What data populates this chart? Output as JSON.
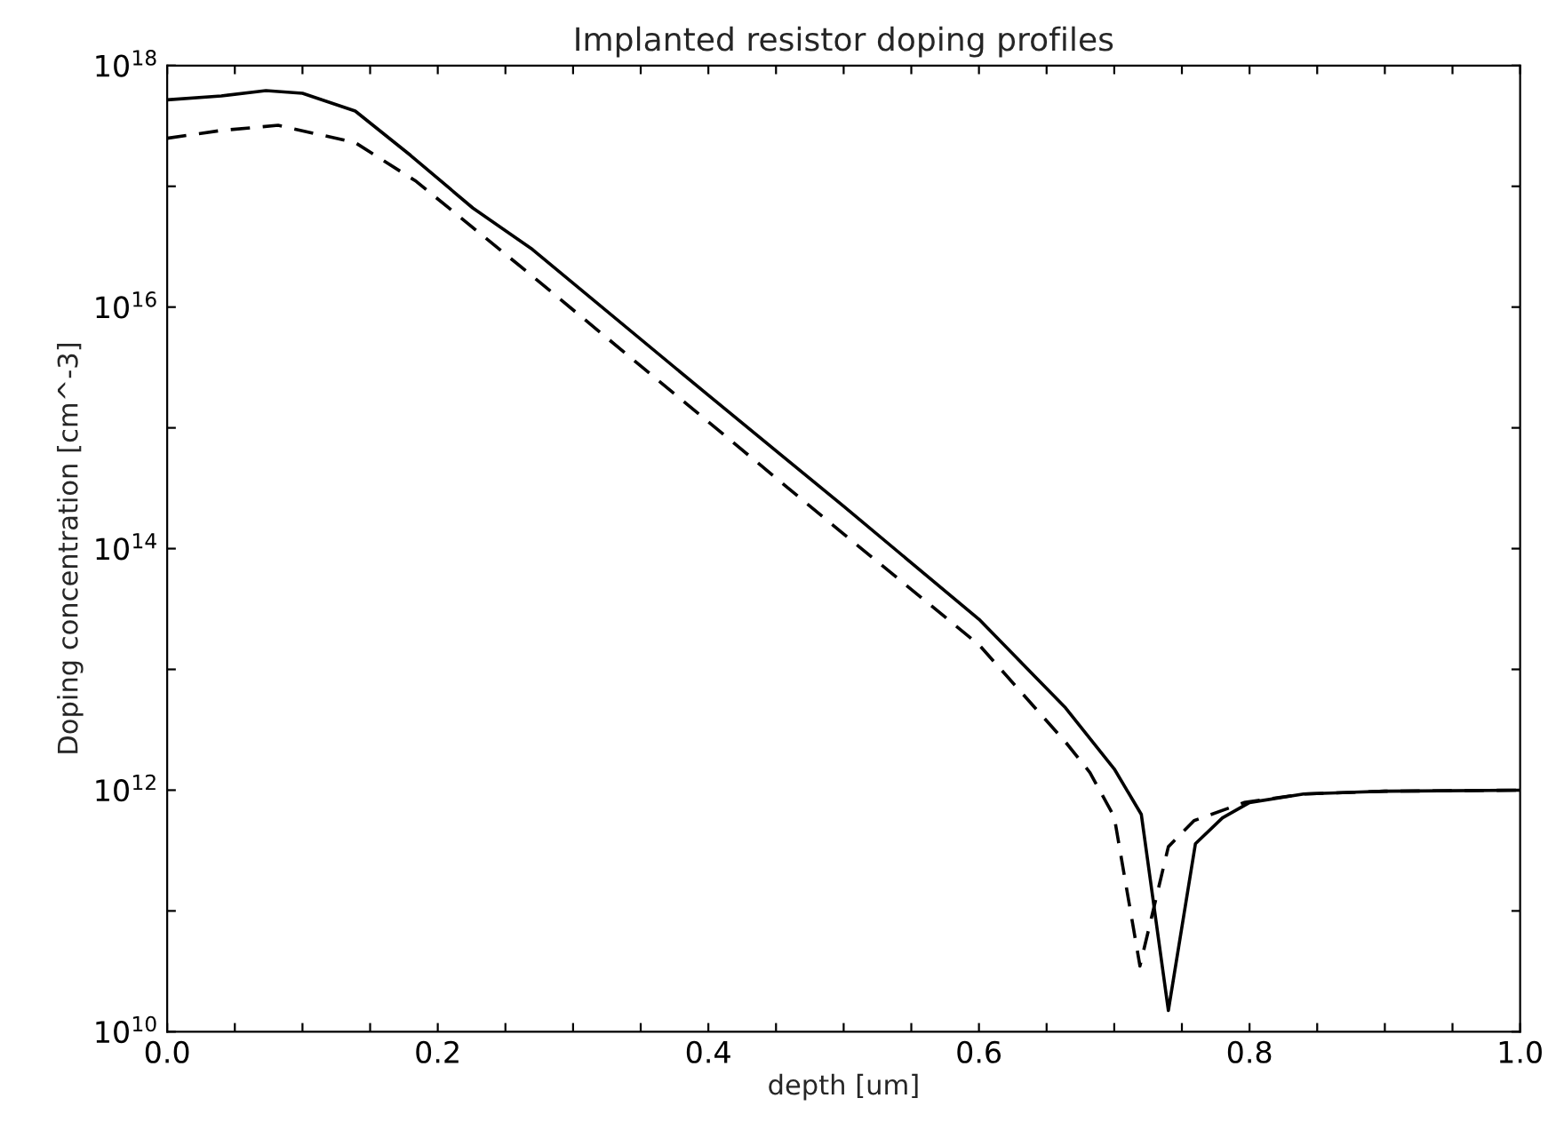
{
  "chart_data": {
    "type": "line",
    "title": "Implanted resistor doping profiles",
    "xlabel": "depth [um]",
    "ylabel": "Doping concentration [cm^-3]",
    "log": "y",
    "grid": false,
    "legend": false,
    "marker": "none",
    "xlim": [
      0,
      1.0
    ],
    "ylim": [
      10000000000.0,
      1e+18
    ],
    "xticks": [
      {
        "value": 0,
        "label": "0.0"
      },
      {
        "value": 0.05,
        "label": null
      },
      {
        "value": 0.1,
        "label": null
      },
      {
        "value": 0.15,
        "label": null
      },
      {
        "value": 0.2,
        "label": "0.2"
      },
      {
        "value": 0.25,
        "label": null
      },
      {
        "value": 0.3,
        "label": null
      },
      {
        "value": 0.35,
        "label": null
      },
      {
        "value": 0.4,
        "label": "0.4"
      },
      {
        "value": 0.45,
        "label": null
      },
      {
        "value": 0.5,
        "label": null
      },
      {
        "value": 0.55,
        "label": null
      },
      {
        "value": 0.6,
        "label": "0.6"
      },
      {
        "value": 0.65,
        "label": null
      },
      {
        "value": 0.7,
        "label": null
      },
      {
        "value": 0.75,
        "label": null
      },
      {
        "value": 0.8,
        "label": "0.8"
      },
      {
        "value": 0.85,
        "label": null
      },
      {
        "value": 0.9,
        "label": null
      },
      {
        "value": 0.95,
        "label": null
      },
      {
        "value": 1.0,
        "label": "1.0"
      }
    ],
    "yticks": [
      {
        "value": 10000000000.0,
        "label": "10$^{10}$"
      },
      {
        "value": 100000000000.0,
        "label": null
      },
      {
        "value": 1000000000000.0,
        "label": "10$^{12}$"
      },
      {
        "value": 10000000000000.0,
        "label": null
      },
      {
        "value": 100000000000000.0,
        "label": "10$^{14}$"
      },
      {
        "value": 1000000000000000.0,
        "label": null
      },
      {
        "value": 1e+16,
        "label": "10$^{16}$"
      },
      {
        "value": 1e+17,
        "label": null
      },
      {
        "value": 1e+18,
        "label": "10$^{18}$"
      }
    ],
    "series": [
      {
        "color": "#000000",
        "line_style": "solid",
        "x": [
          0,
          0.04,
          0.073,
          0.1,
          0.139,
          0.18,
          0.226,
          0.27,
          0.4,
          0.5,
          0.6,
          0.664,
          0.7,
          0.72,
          0.74,
          0.76,
          0.78,
          0.8,
          0.84,
          0.9,
          1.0
        ],
        "values": [
          5.2e+17,
          5.6e+17,
          6.2e+17,
          5.9e+17,
          4.2e+17,
          1.8e+17,
          6.6e+16,
          3e+16,
          1860000000000000.0,
          224000000000000.0,
          26000000000000.0,
          4800000000000.0,
          1500000000000.0,
          630000000000.0,
          15000000000.0,
          360000000000.0,
          590000000000.0,
          790000000000.0,
          930000000000.0,
          980000000000.0,
          1000000000000.0
        ]
      },
      {
        "color": "#000000",
        "line_style": "dashed",
        "x": [
          0,
          0.04,
          0.082,
          0.139,
          0.184,
          0.27,
          0.4,
          0.5,
          0.6,
          0.664,
          0.682,
          0.7,
          0.719,
          0.74,
          0.759,
          0.796,
          0.84,
          0.9,
          1.0
        ],
        "values": [
          2.5e+17,
          2.9e+17,
          3.2e+17,
          2.3e+17,
          1.1e+17,
          1.8e+16,
          1120000000000000.0,
          132000000000000.0,
          16000000000000.0,
          2500000000000.0,
          1400000000000.0,
          600000000000.0,
          35000000000.0,
          340000000000.0,
          560000000000.0,
          790000000000.0,
          930000000000.0,
          980000000000.0,
          1000000000000.0
        ]
      }
    ]
  }
}
